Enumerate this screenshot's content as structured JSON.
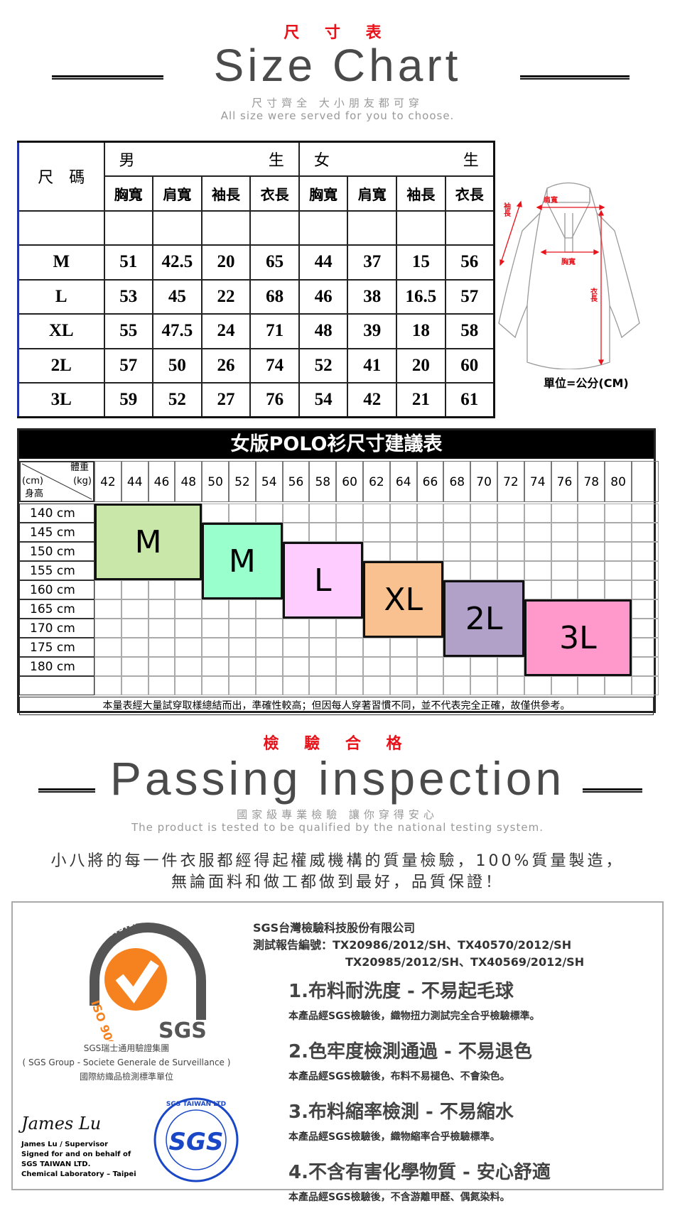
{
  "size_header": {
    "title_cn": "尺 寸 表",
    "title_en": "Size Chart",
    "subtitle_cn": "尺寸齊全 大小朋友都可穿",
    "subtitle_en": "All size were served for you to choose."
  },
  "size_table": {
    "corner": "尺　碼",
    "groups": [
      "男",
      "生",
      "女",
      "生"
    ],
    "columns": [
      "胸寬",
      "肩寬",
      "袖長",
      "衣長",
      "胸寬",
      "肩寬",
      "袖長",
      "衣長"
    ],
    "rows": [
      {
        "size": "M",
        "values": [
          "51",
          "42.5",
          "20",
          "65",
          "44",
          "37",
          "15",
          "56"
        ]
      },
      {
        "size": "L",
        "values": [
          "53",
          "45",
          "22",
          "68",
          "46",
          "38",
          "16.5",
          "57"
        ]
      },
      {
        "size": "XL",
        "values": [
          "55",
          "47.5",
          "24",
          "71",
          "48",
          "39",
          "18",
          "58"
        ]
      },
      {
        "size": "2L",
        "values": [
          "57",
          "50",
          "26",
          "74",
          "52",
          "41",
          "20",
          "60"
        ]
      },
      {
        "size": "3L",
        "values": [
          "59",
          "52",
          "27",
          "76",
          "54",
          "42",
          "21",
          "61"
        ]
      }
    ]
  },
  "shirt_diagram": {
    "labels": {
      "shoulder": "肩寬",
      "sleeve": "袖長",
      "chest": "胸寬",
      "length": "衣長"
    },
    "unit": "單位=公分(CM)",
    "accent": "#e8121b"
  },
  "women_chart": {
    "title": "女版POLO衫尺寸建議表",
    "corner": {
      "weight": "體重",
      "height": "身高",
      "cm": "(cm)",
      "kg": "(kg)"
    },
    "weights": [
      "42",
      "44",
      "46",
      "48",
      "50",
      "52",
      "54",
      "56",
      "58",
      "60",
      "62",
      "64",
      "66",
      "68",
      "70",
      "72",
      "74",
      "76",
      "78",
      "80"
    ],
    "heights": [
      "140 cm",
      "145 cm",
      "150 cm",
      "155 cm",
      "160 cm",
      "165 cm",
      "170 cm",
      "175 cm",
      "180 cm"
    ],
    "blocks": [
      {
        "label": "M",
        "weights": [
          "42",
          "48"
        ],
        "heights": [
          "140 cm",
          "155 cm"
        ],
        "color": "#c9e7a8"
      },
      {
        "label": "M",
        "weights": [
          "50",
          "54"
        ],
        "heights": [
          "145 cm",
          "160 cm"
        ],
        "color": "#99ffcc"
      },
      {
        "label": "L",
        "weights": [
          "56",
          "60"
        ],
        "heights": [
          "150 cm",
          "165 cm"
        ],
        "color": "#ffccff"
      },
      {
        "label": "XL",
        "weights": [
          "62",
          "66"
        ],
        "heights": [
          "155 cm",
          "170 cm"
        ],
        "color": "#f9c090"
      },
      {
        "label": "2L",
        "weights": [
          "68",
          "72"
        ],
        "heights": [
          "160 cm",
          "175 cm"
        ],
        "color": "#b1a0c7"
      },
      {
        "label": "3L",
        "weights": [
          "74",
          "80"
        ],
        "heights": [
          "165 cm",
          "180 cm"
        ],
        "color": "#ff99cc"
      }
    ],
    "footnote": "本量表經大量試穿取樣總結而出，準確性較高；但因每人穿著習慣不同，並不代表完全正確，故僅供參考。"
  },
  "inspection_header": {
    "title_cn": "檢 驗 合 格",
    "title_en": "Passing inspection",
    "subtitle_cn": "國家級專業檢驗 讓你穿得安心",
    "subtitle_en": "The product is tested to be qualified by the national testing system.",
    "paragraph_1": "小八將的每一件衣服都經得起權威機構的質量檢驗，100%質量製造，",
    "paragraph_2": "無論面料和做工都做到最好，品質保證！"
  },
  "sgs": {
    "logo_ring": "SYSTEM CERTIFICATION",
    "logo_iso": "ISO 9001",
    "logo_brand": "SGS",
    "org_cn": "SGS瑞士通用驗證集團",
    "org_en": "( SGS Group - Societe Generale de Surveillance )",
    "org_role": "國際紡織品檢測標準單位",
    "stamp_text": "SGS TAIWAN LTD",
    "signature": "James Lu",
    "signer_lines": [
      "James Lu / Supervisor",
      "Signed for and on behalf of",
      "SGS TAIWAN LTD.",
      "Chemical Laboratory – Taipei"
    ],
    "company": "SGS台灣檢驗科技股份有限公司",
    "report_label": "測試報告編號：TX20986/2012/SH、TX40570/2012/SH",
    "report_line2": "TX20985/2012/SH、TX40569/2012/SH",
    "items": [
      {
        "title": "1.布料耐洗度 - 不易起毛球",
        "desc": "本產品經SGS檢驗後，織物扭力測試完全合乎檢驗標準。"
      },
      {
        "title": "2.色牢度檢測通過 - 不易退色",
        "desc": "本產品經SGS檢驗後，布料不易褪色、不會染色。"
      },
      {
        "title": "3.布料縮率檢測 - 不易縮水",
        "desc": "本產品經SGS檢驗後，織物縮率合乎檢驗標準。"
      },
      {
        "title": "4.不含有害化學物質 - 安心舒適",
        "desc": "本產品經SGS檢驗後，不含游離甲醛、偶氮染料。"
      }
    ]
  }
}
